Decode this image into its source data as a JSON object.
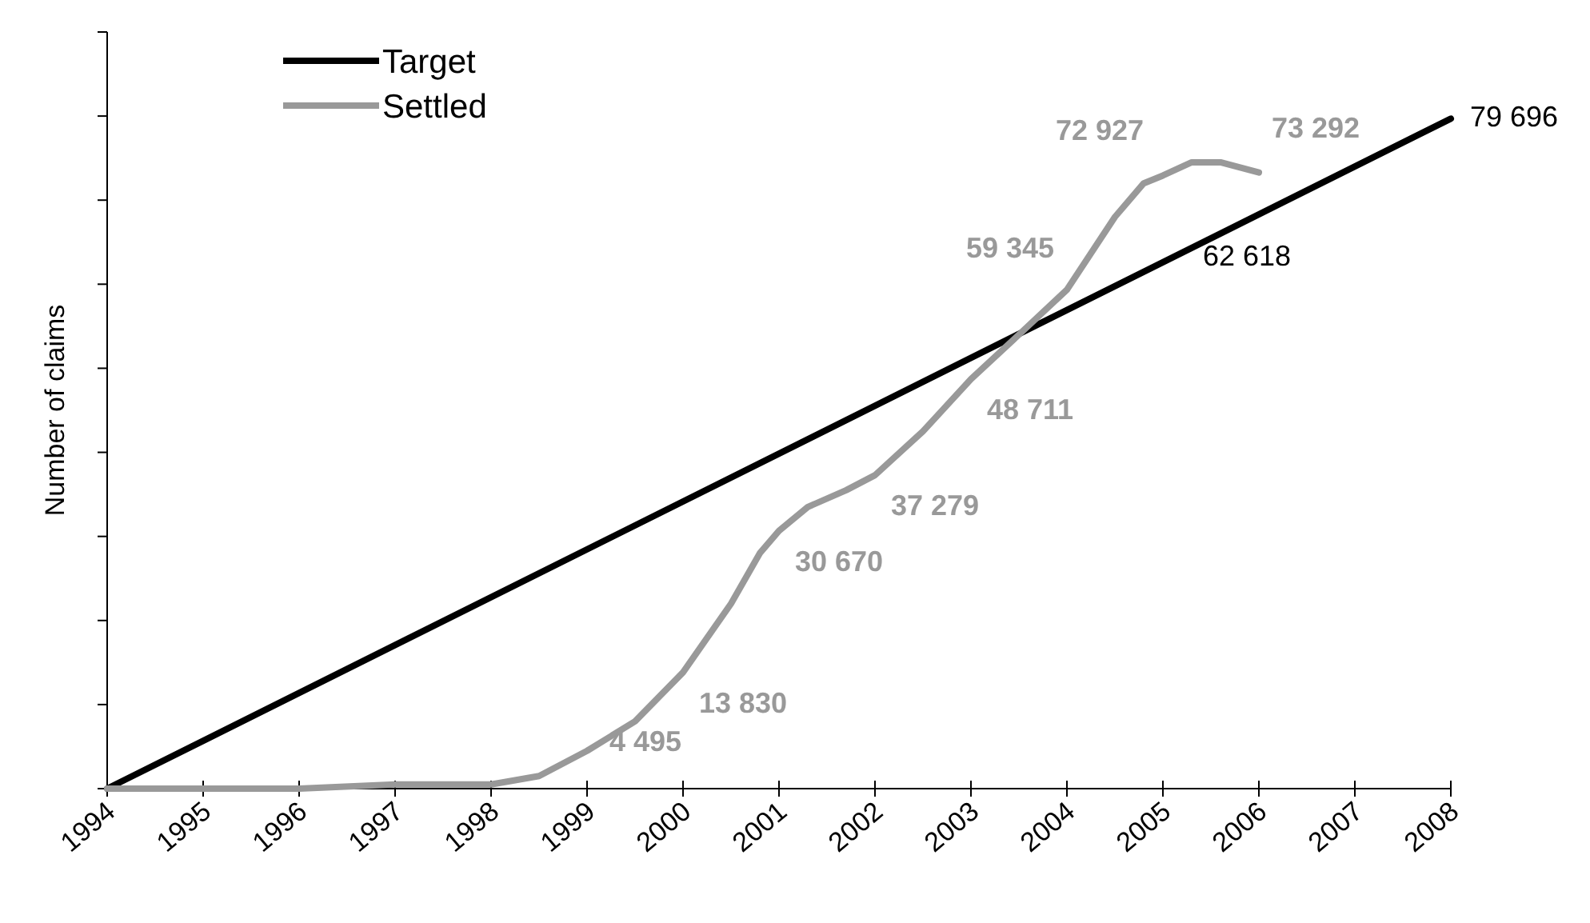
{
  "chart_data": {
    "type": "line",
    "ylabel": "Number of claims",
    "xlim": [
      1994,
      2008
    ],
    "xticks": [
      1994,
      1995,
      1996,
      1997,
      1998,
      1999,
      2000,
      2001,
      2002,
      2003,
      2004,
      2005,
      2006,
      2007,
      2008
    ],
    "ylim": [
      0,
      90000
    ],
    "yticks": [
      {
        "value": 0,
        "label": null
      },
      {
        "value": 10000,
        "label": null
      },
      {
        "value": 20000,
        "label": null
      },
      {
        "value": 30000,
        "label": null
      },
      {
        "value": 40000,
        "label": null
      },
      {
        "value": 50000,
        "label": null
      },
      {
        "value": 60000,
        "label": null
      },
      {
        "value": 70000,
        "label": null
      },
      {
        "value": 80000,
        "label": null
      },
      {
        "value": 90000,
        "label": null
      }
    ],
    "tick_labels": "x",
    "grid": false,
    "legend": "top left",
    "marker": "none",
    "line_style": "solid",
    "series": [
      {
        "name": "Target",
        "color": "#000000",
        "x": [
          1994,
          2005,
          2008
        ],
        "values": [
          0,
          62618,
          79696
        ],
        "value_labels": [
          null,
          "62 618",
          "79 696"
        ]
      },
      {
        "name": "Settled",
        "color": "#999999",
        "x": [
          1994,
          1995,
          1996,
          1997,
          1998,
          1998.5,
          1999,
          1999.5,
          2000,
          2000.5,
          2000.8,
          2001,
          2001.3,
          2001.7,
          2002,
          2002.5,
          2003,
          2003.5,
          2004,
          2004.5,
          2004.8,
          2005,
          2005.3,
          2005.6,
          2006
        ],
        "values": [
          0,
          0,
          0,
          500,
          500,
          1500,
          4495,
          8000,
          13830,
          22000,
          28000,
          30670,
          33500,
          35500,
          37279,
          42500,
          48711,
          54000,
          59345,
          68000,
          72000,
          72927,
          74500,
          74500,
          73292
        ],
        "value_labels": [
          null,
          null,
          null,
          null,
          null,
          null,
          "4 495",
          null,
          "13 830",
          null,
          null,
          "30 670",
          null,
          null,
          "37 279",
          null,
          "48 711",
          null,
          "59 345",
          null,
          null,
          "72 927",
          null,
          null,
          "73 292"
        ]
      }
    ]
  }
}
